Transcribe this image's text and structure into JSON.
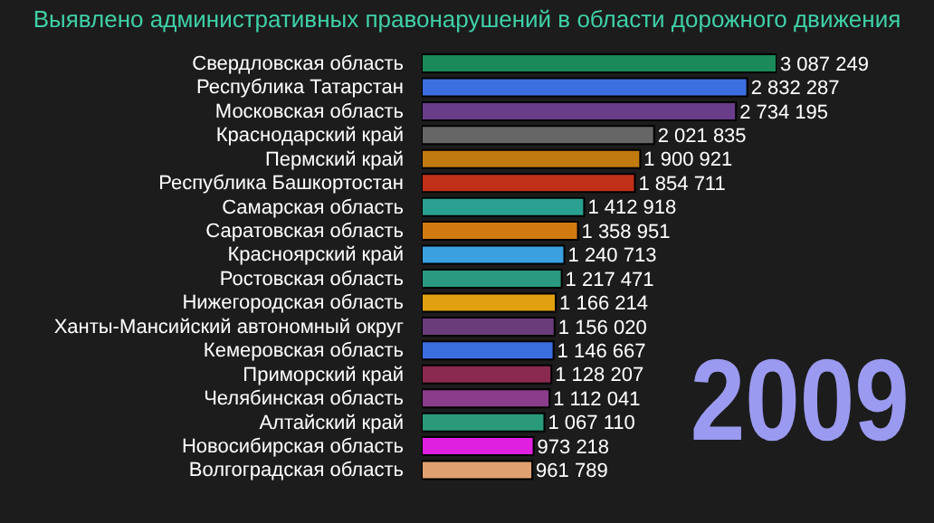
{
  "chart_data": {
    "type": "bar",
    "orientation": "horizontal",
    "title": "Выявлено административных правонарушений в области дорожного движения",
    "categories": [
      "Свердловская область",
      "Республика Татарстан",
      "Московская область",
      "Краснодарский край",
      "Пермский край",
      "Республика Башкортостан",
      "Самарская область",
      "Саратовская область",
      "Красноярский край",
      "Ростовская область",
      "Нижегородская область",
      "Ханты-Мансийский автономный округ",
      "Кемеровская область",
      "Приморский край",
      "Челябинская область",
      "Алтайский край",
      "Новосибирская область",
      "Волгоградская область"
    ],
    "values": [
      3087249,
      2832287,
      2734195,
      2021835,
      1900921,
      1854711,
      1412918,
      1358951,
      1240713,
      1217471,
      1166214,
      1156020,
      1146667,
      1128207,
      1112041,
      1067110,
      973218,
      961789
    ],
    "value_labels": [
      "3 087 249",
      "2 832 287",
      "2 734 195",
      "2 021 835",
      "1 900 921",
      "1 854 711",
      "1 412 918",
      "1 358 951",
      "1 240 713",
      "1 217 471",
      "1 166 214",
      "1 156 020",
      "1 146 667",
      "1 128 207",
      "1 112 041",
      "1 067 110",
      "973 218",
      "961 789"
    ],
    "colors": [
      "#1a8a5a",
      "#3b6fe0",
      "#6a3d8a",
      "#666666",
      "#c07a10",
      "#c03018",
      "#2aa090",
      "#d07a10",
      "#3aa0e0",
      "#2a9a80",
      "#e0a010",
      "#6a3d7a",
      "#3b6fe0",
      "#8a2a50",
      "#8a3d8a",
      "#2a9a7a",
      "#e020e0",
      "#e0a070"
    ],
    "annotations": [
      "2009"
    ],
    "legend": false,
    "grid": false
  }
}
